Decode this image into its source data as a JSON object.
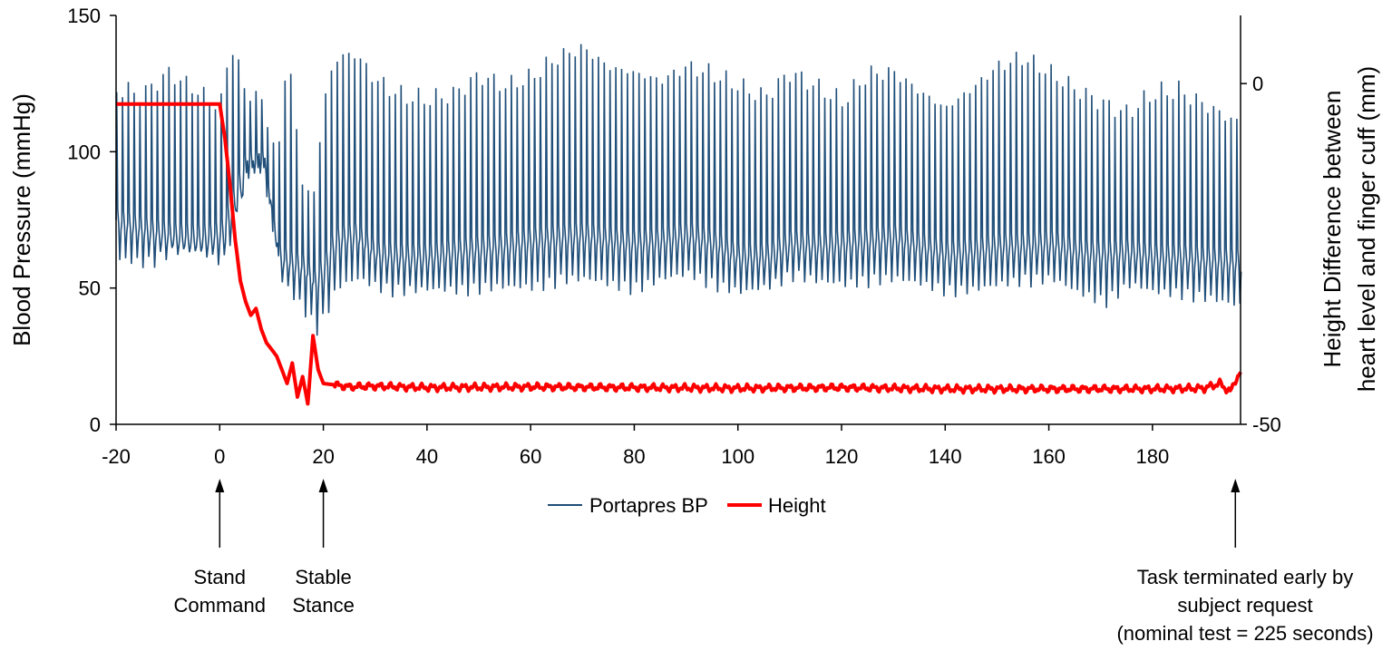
{
  "chart_data": {
    "type": "line",
    "title": "",
    "xlabel": "",
    "ylabel": "Blood Pressure (mmHg)",
    "y2label_lines": [
      "Height Difference between",
      "heart level and finger cuff (mm)"
    ],
    "xlim": [
      -20,
      197
    ],
    "ylim": [
      0,
      150
    ],
    "y2lim": [
      -50,
      10
    ],
    "x_ticks": [
      -20,
      0,
      20,
      40,
      60,
      80,
      100,
      120,
      140,
      160,
      180
    ],
    "y_ticks": [
      0,
      50,
      100,
      150
    ],
    "y2_ticks": [
      0,
      -50
    ],
    "grid": false,
    "legend_position": "bottom-center",
    "colors": {
      "bp": "#1f4e79",
      "height": "#ff0000"
    },
    "series": [
      {
        "name": "Portapres BP",
        "axis": "left",
        "envelope_x": [
          -20,
          -15,
          -10,
          -5,
          0,
          2,
          5,
          8,
          11,
          13,
          16,
          18,
          20,
          22,
          26,
          30,
          35,
          40,
          45,
          50,
          55,
          60,
          65,
          70,
          75,
          80,
          85,
          90,
          95,
          100,
          105,
          110,
          115,
          120,
          125,
          130,
          135,
          140,
          145,
          150,
          155,
          160,
          165,
          170,
          175,
          180,
          185,
          190,
          196
        ],
        "envelope_top": [
          127,
          125,
          133,
          127,
          120,
          144,
          125,
          123,
          100,
          142,
          90,
          88,
          122,
          138,
          140,
          130,
          124,
          123,
          125,
          132,
          128,
          131,
          138,
          142,
          135,
          133,
          130,
          135,
          132,
          128,
          124,
          133,
          128,
          122,
          132,
          133,
          126,
          120,
          127,
          135,
          138,
          133,
          127,
          122,
          118,
          125,
          126,
          121,
          115
        ],
        "envelope_bottom": [
          57,
          56,
          60,
          60,
          56,
          70,
          95,
          95,
          50,
          45,
          38,
          32,
          38,
          47,
          50,
          47,
          46,
          46,
          46,
          47,
          47,
          47,
          50,
          50,
          48,
          47,
          50,
          52,
          48,
          45,
          47,
          52,
          49,
          48,
          50,
          50,
          48,
          46,
          46,
          48,
          50,
          50,
          45,
          42,
          48,
          45,
          45,
          43,
          40
        ],
        "envelope_mid": [
          75,
          72,
          70,
          69,
          70,
          80,
          96,
          96,
          62,
          60,
          58,
          52,
          58,
          68,
          70,
          63,
          62,
          62,
          64,
          65,
          66,
          68,
          69,
          70,
          68,
          67,
          68,
          70,
          67,
          62,
          62,
          67,
          66,
          67,
          68,
          69,
          66,
          63,
          64,
          66,
          66,
          67,
          64,
          63,
          64,
          62,
          62,
          61,
          60
        ]
      },
      {
        "name": "Height",
        "axis": "right",
        "x": [
          -20,
          -10,
          0,
          1,
          2,
          3,
          4,
          5,
          6,
          7,
          8,
          9,
          10,
          11,
          12,
          13,
          14,
          15,
          16,
          17,
          18,
          19,
          20,
          25,
          30,
          40,
          60,
          80,
          100,
          120,
          140,
          160,
          180,
          190,
          193,
          195,
          196,
          197
        ],
        "y": [
          -3,
          -3,
          -3,
          -8,
          -15,
          -23,
          -29,
          -32,
          -34,
          -33,
          -36,
          -38,
          -39,
          -40,
          -42,
          -44,
          -41,
          -46,
          -43,
          -47,
          -37,
          -42,
          -44,
          -44.5,
          -44.4,
          -44.6,
          -44.5,
          -44.6,
          -44.7,
          -44.6,
          -44.8,
          -44.8,
          -44.8,
          -44.7,
          -44.0,
          -45.3,
          -43.5,
          -42.5
        ]
      }
    ]
  },
  "legend": {
    "items": [
      "Portapres BP",
      "Height"
    ]
  },
  "annotations": [
    {
      "x_value": 0,
      "lines": [
        "Stand",
        "Command"
      ]
    },
    {
      "x_value": 20,
      "lines": [
        "Stable",
        "Stance"
      ]
    },
    {
      "x_value": 196,
      "lines": [
        "Task terminated early by",
        "subject request",
        "(nominal test = 225 seconds)"
      ]
    }
  ]
}
